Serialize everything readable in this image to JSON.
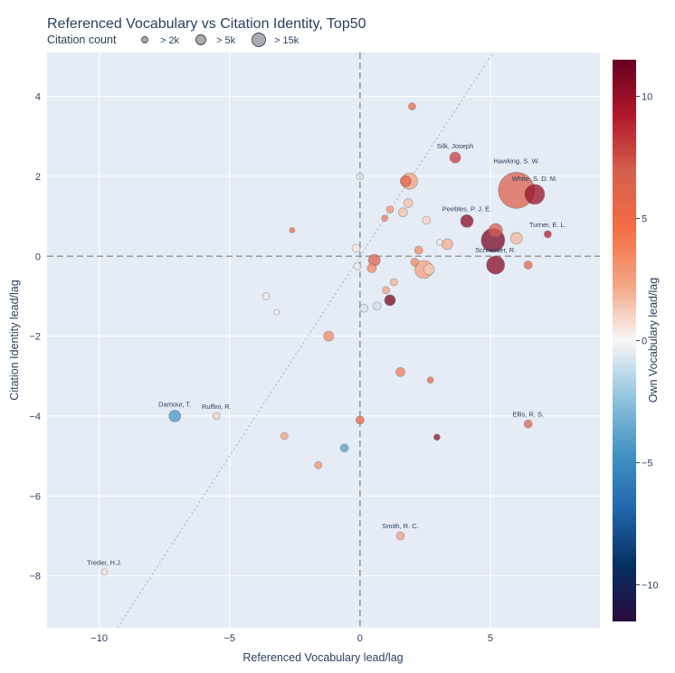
{
  "chart_data": {
    "type": "scatter",
    "title": "Referenced Vocabulary vs Citation Identity, Top50",
    "xlabel": "Referenced Vocabulary lead/lag",
    "ylabel": "Citation Identity lead/lag",
    "xlim": [
      -12,
      9.2
    ],
    "ylim": [
      -9.3,
      5.1
    ],
    "xticks": [
      -10,
      -5,
      0,
      5
    ],
    "yticks": [
      -8,
      -6,
      -4,
      -2,
      0,
      2,
      4
    ],
    "grid": true,
    "reference_lines": {
      "x_zero": true,
      "y_zero": true,
      "diagonal": true
    },
    "colorbar": {
      "title": "Own Vocabulary lead/lag",
      "range": [
        -11.5,
        11.5
      ],
      "ticks": [
        -10,
        -5,
        0,
        5,
        10
      ],
      "colorscale": "RdBu reversed"
    },
    "legend": {
      "title": "Citation count",
      "placement": "top-left",
      "items": [
        {
          "label": "> 2k",
          "size": 3.5
        },
        {
          "label": "> 5k",
          "size": 5.5
        },
        {
          "label": "> 15k",
          "size": 7.5
        }
      ]
    },
    "points": [
      {
        "x": 6.0,
        "y": 1.65,
        "r": 20,
        "c": 6.5,
        "label": ""
      },
      {
        "x": 6.7,
        "y": 1.55,
        "r": 11,
        "c": 10,
        "label": "White, S. D. M."
      },
      {
        "x": 5.1,
        "y": 0.4,
        "r": 13,
        "c": 11,
        "label": ""
      },
      {
        "x": 5.2,
        "y": -0.22,
        "r": 10,
        "c": 10.5,
        "label": "Schneider, R."
      },
      {
        "x": 5.2,
        "y": 0.65,
        "r": 7.5,
        "c": 7,
        "label": ""
      },
      {
        "x": 4.1,
        "y": 0.88,
        "r": 7,
        "c": 10.5,
        "label": "Peebles, P. J. E."
      },
      {
        "x": 3.65,
        "y": 2.47,
        "r": 6,
        "c": 8,
        "label": "Silk, Joseph"
      },
      {
        "x": 2.45,
        "y": -0.33,
        "r": 10,
        "c": 2.5,
        "label": ""
      },
      {
        "x": 2.65,
        "y": -0.33,
        "r": 6,
        "c": 1.2,
        "label": ""
      },
      {
        "x": 1.9,
        "y": 1.88,
        "r": 9,
        "c": 2.5,
        "label": ""
      },
      {
        "x": 1.75,
        "y": 1.88,
        "r": 6,
        "c": 6,
        "label": ""
      },
      {
        "x": 1.85,
        "y": 1.33,
        "r": 5,
        "c": 1.5,
        "label": ""
      },
      {
        "x": 1.65,
        "y": 1.1,
        "r": 5,
        "c": 1.5,
        "label": ""
      },
      {
        "x": 2.55,
        "y": 0.9,
        "r": 4.5,
        "c": 1,
        "label": ""
      },
      {
        "x": 1.15,
        "y": 1.17,
        "r": 4,
        "c": 3,
        "label": ""
      },
      {
        "x": 0.95,
        "y": 0.95,
        "r": 3.5,
        "c": 4,
        "label": ""
      },
      {
        "x": 6.0,
        "y": 0.45,
        "r": 6.5,
        "c": 1.8,
        "label": ""
      },
      {
        "x": 3.35,
        "y": 0.3,
        "r": 6,
        "c": 2,
        "label": ""
      },
      {
        "x": 3.05,
        "y": 0.35,
        "r": 3.5,
        "c": 0.5,
        "label": ""
      },
      {
        "x": 2.25,
        "y": 0.15,
        "r": 4.5,
        "c": 3.5,
        "label": ""
      },
      {
        "x": 2.1,
        "y": -0.15,
        "r": 4.5,
        "c": 3.5,
        "label": ""
      },
      {
        "x": 7.2,
        "y": 0.55,
        "r": 4,
        "c": 9,
        "label": "Turner, E. L."
      },
      {
        "x": 6.45,
        "y": -0.22,
        "r": 4.5,
        "c": 5.5,
        "label": ""
      },
      {
        "x": 0.55,
        "y": -0.1,
        "r": 6.5,
        "c": 6.5,
        "label": ""
      },
      {
        "x": 0.45,
        "y": -0.3,
        "r": 5,
        "c": 3.5,
        "label": ""
      },
      {
        "x": -0.15,
        "y": 0.2,
        "r": 4.5,
        "c": 0.5,
        "label": ""
      },
      {
        "x": -0.1,
        "y": -0.25,
        "r": 4,
        "c": -0.5,
        "label": ""
      },
      {
        "x": 0.0,
        "y": 2.0,
        "r": 4,
        "c": -0.8,
        "label": ""
      },
      {
        "x": 2.0,
        "y": 3.75,
        "r": 4,
        "c": 5.5,
        "label": ""
      },
      {
        "x": -2.6,
        "y": 0.65,
        "r": 3,
        "c": 5,
        "label": ""
      },
      {
        "x": 1.3,
        "y": -0.65,
        "r": 4,
        "c": 2,
        "label": ""
      },
      {
        "x": 1.0,
        "y": -0.85,
        "r": 4,
        "c": 2.5,
        "label": ""
      },
      {
        "x": 1.15,
        "y": -1.1,
        "r": 6,
        "c": 11,
        "label": ""
      },
      {
        "x": 0.65,
        "y": -1.25,
        "r": 4.5,
        "c": -1,
        "label": ""
      },
      {
        "x": 0.15,
        "y": -1.3,
        "r": 4.5,
        "c": -0.8,
        "label": ""
      },
      {
        "x": -3.6,
        "y": -1.0,
        "r": 4,
        "c": 0.5,
        "label": ""
      },
      {
        "x": -3.2,
        "y": -1.4,
        "r": 3,
        "c": 0.3,
        "label": ""
      },
      {
        "x": -1.2,
        "y": -2.0,
        "r": 5.5,
        "c": 3.5,
        "label": ""
      },
      {
        "x": 1.55,
        "y": -2.9,
        "r": 5,
        "c": 4,
        "label": ""
      },
      {
        "x": 2.7,
        "y": -3.1,
        "r": 3.5,
        "c": 5,
        "label": ""
      },
      {
        "x": -7.1,
        "y": -4.0,
        "r": 6.5,
        "c": -4.5,
        "label": "Damour, T."
      },
      {
        "x": -5.5,
        "y": -4.0,
        "r": 4,
        "c": 1,
        "label": "Ruffini, R."
      },
      {
        "x": 0.0,
        "y": -4.1,
        "r": 4.5,
        "c": 5.5,
        "label": ""
      },
      {
        "x": -2.9,
        "y": -4.5,
        "r": 4,
        "c": 2.5,
        "label": ""
      },
      {
        "x": 2.95,
        "y": -4.53,
        "r": 3.5,
        "c": 10,
        "label": ""
      },
      {
        "x": -0.6,
        "y": -4.8,
        "r": 4.5,
        "c": -4,
        "label": ""
      },
      {
        "x": -1.6,
        "y": -5.23,
        "r": 4,
        "c": 3,
        "label": ""
      },
      {
        "x": 6.45,
        "y": -4.2,
        "r": 4.5,
        "c": 6,
        "label": "Ellis, R. S."
      },
      {
        "x": 1.55,
        "y": -7.0,
        "r": 4.5,
        "c": 2.5,
        "label": "Smith, R. C."
      },
      {
        "x": -9.8,
        "y": -7.9,
        "r": 3.5,
        "c": 0.5,
        "label": "Treder, H.J."
      }
    ],
    "floating_labels": [
      {
        "x": 6.0,
        "y": 2.33,
        "text": "Hawking, S. W."
      }
    ]
  }
}
